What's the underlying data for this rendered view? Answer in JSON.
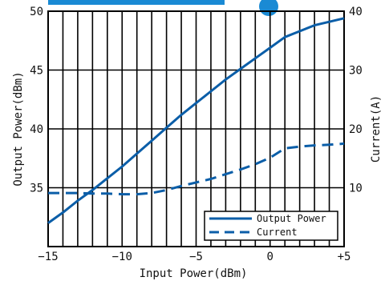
{
  "chart_data": {
    "type": "line",
    "title": "",
    "xlabel": "Input Power(dBm)",
    "ylabel_left": "Output Power(dBm)",
    "ylabel_right": "Current(A)",
    "xlim": [
      -15,
      5
    ],
    "ylim_left": [
      30,
      50
    ],
    "ylim_right": [
      0,
      40
    ],
    "grid": true,
    "legend_position": "bottom-right",
    "x_ticks": [
      {
        "value": -15,
        "label": "−15"
      },
      {
        "value": -10,
        "label": "−10"
      },
      {
        "value": -5,
        "label": "−5"
      },
      {
        "value": 0,
        "label": "0"
      },
      {
        "value": 5,
        "label": "+5"
      }
    ],
    "y_left_ticks": [
      {
        "value": 35,
        "label": "35"
      },
      {
        "value": 40,
        "label": "40"
      },
      {
        "value": 45,
        "label": "45"
      },
      {
        "value": 50,
        "label": "50"
      }
    ],
    "y_right_ticks": [
      {
        "value": 10,
        "label": "10"
      },
      {
        "value": 20,
        "label": "20"
      },
      {
        "value": 30,
        "label": "30"
      },
      {
        "value": 40,
        "label": "40"
      }
    ],
    "series": [
      {
        "name": "Output Power",
        "axis": "left",
        "style": "solid",
        "color": "#0b5ea8",
        "x": [
          -15,
          -14,
          -13,
          -12,
          -11,
          -10,
          -9,
          -8,
          -7,
          -6,
          -5,
          -4,
          -3,
          -2,
          -1,
          0,
          1,
          2,
          3,
          4,
          5
        ],
        "y": [
          32.0,
          32.9,
          33.9,
          34.8,
          35.8,
          36.8,
          37.9,
          39.0,
          40.1,
          41.2,
          42.2,
          43.2,
          44.2,
          45.1,
          46.0,
          46.9,
          47.8,
          48.3,
          48.8,
          49.1,
          49.4
        ]
      },
      {
        "name": "Current",
        "axis": "right",
        "style": "dashed",
        "color": "#0b5ea8",
        "x": [
          -15,
          -14,
          -13,
          -12,
          -11,
          -10,
          -9,
          -8,
          -7,
          -6,
          -5,
          -4,
          -3,
          -2,
          -1,
          0,
          1,
          2,
          3,
          4,
          5
        ],
        "y": [
          9.1,
          9.1,
          9.1,
          9.0,
          9.0,
          8.9,
          8.9,
          9.1,
          9.6,
          10.3,
          10.9,
          11.5,
          12.3,
          13.1,
          14.0,
          15.1,
          16.7,
          17.0,
          17.2,
          17.3,
          17.5
        ]
      }
    ]
  }
}
